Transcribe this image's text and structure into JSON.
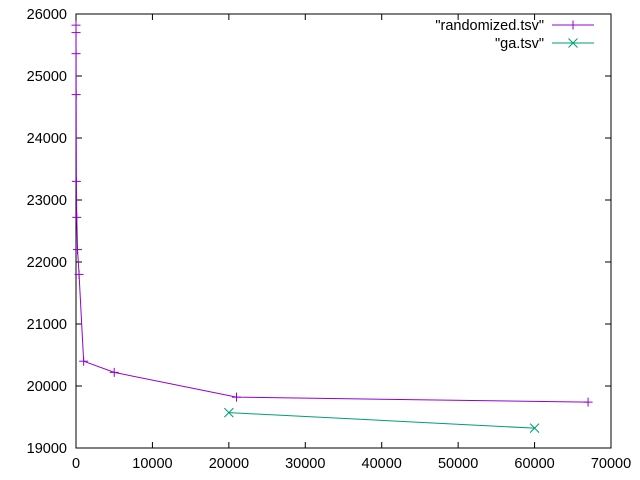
{
  "chart_data": {
    "type": "line",
    "title": "",
    "xlabel": "",
    "ylabel": "",
    "xlim": [
      0,
      70000
    ],
    "ylim": [
      19000,
      26000
    ],
    "x_ticks": [
      {
        "value": 0,
        "label": "0"
      },
      {
        "value": 10000,
        "label": "10000"
      },
      {
        "value": 20000,
        "label": "20000"
      },
      {
        "value": 30000,
        "label": "30000"
      },
      {
        "value": 40000,
        "label": "40000"
      },
      {
        "value": 50000,
        "label": "50000"
      },
      {
        "value": 60000,
        "label": "60000"
      },
      {
        "value": 70000,
        "label": "70000"
      }
    ],
    "y_ticks": [
      {
        "value": 19000,
        "label": "19000"
      },
      {
        "value": 20000,
        "label": "20000"
      },
      {
        "value": 21000,
        "label": "21000"
      },
      {
        "value": 22000,
        "label": "22000"
      },
      {
        "value": 23000,
        "label": "23000"
      },
      {
        "value": 24000,
        "label": "24000"
      },
      {
        "value": 25000,
        "label": "25000"
      },
      {
        "value": 26000,
        "label": "26000"
      }
    ],
    "grid": false,
    "legend_position": "top-right",
    "series": [
      {
        "name": "\"randomized.tsv\"",
        "color": "#9400d3",
        "marker": "plus",
        "x": [
          1,
          5,
          10,
          20,
          50,
          100,
          200,
          400,
          1000,
          5000,
          21000,
          67000
        ],
        "y": [
          25820,
          25700,
          25360,
          24700,
          23300,
          22720,
          22200,
          21800,
          20400,
          20220,
          19820,
          19740
        ]
      },
      {
        "name": "\"ga.tsv\"",
        "color": "#009e73",
        "marker": "cross",
        "x": [
          20000,
          60000
        ],
        "y": [
          19570,
          19320
        ]
      }
    ]
  }
}
